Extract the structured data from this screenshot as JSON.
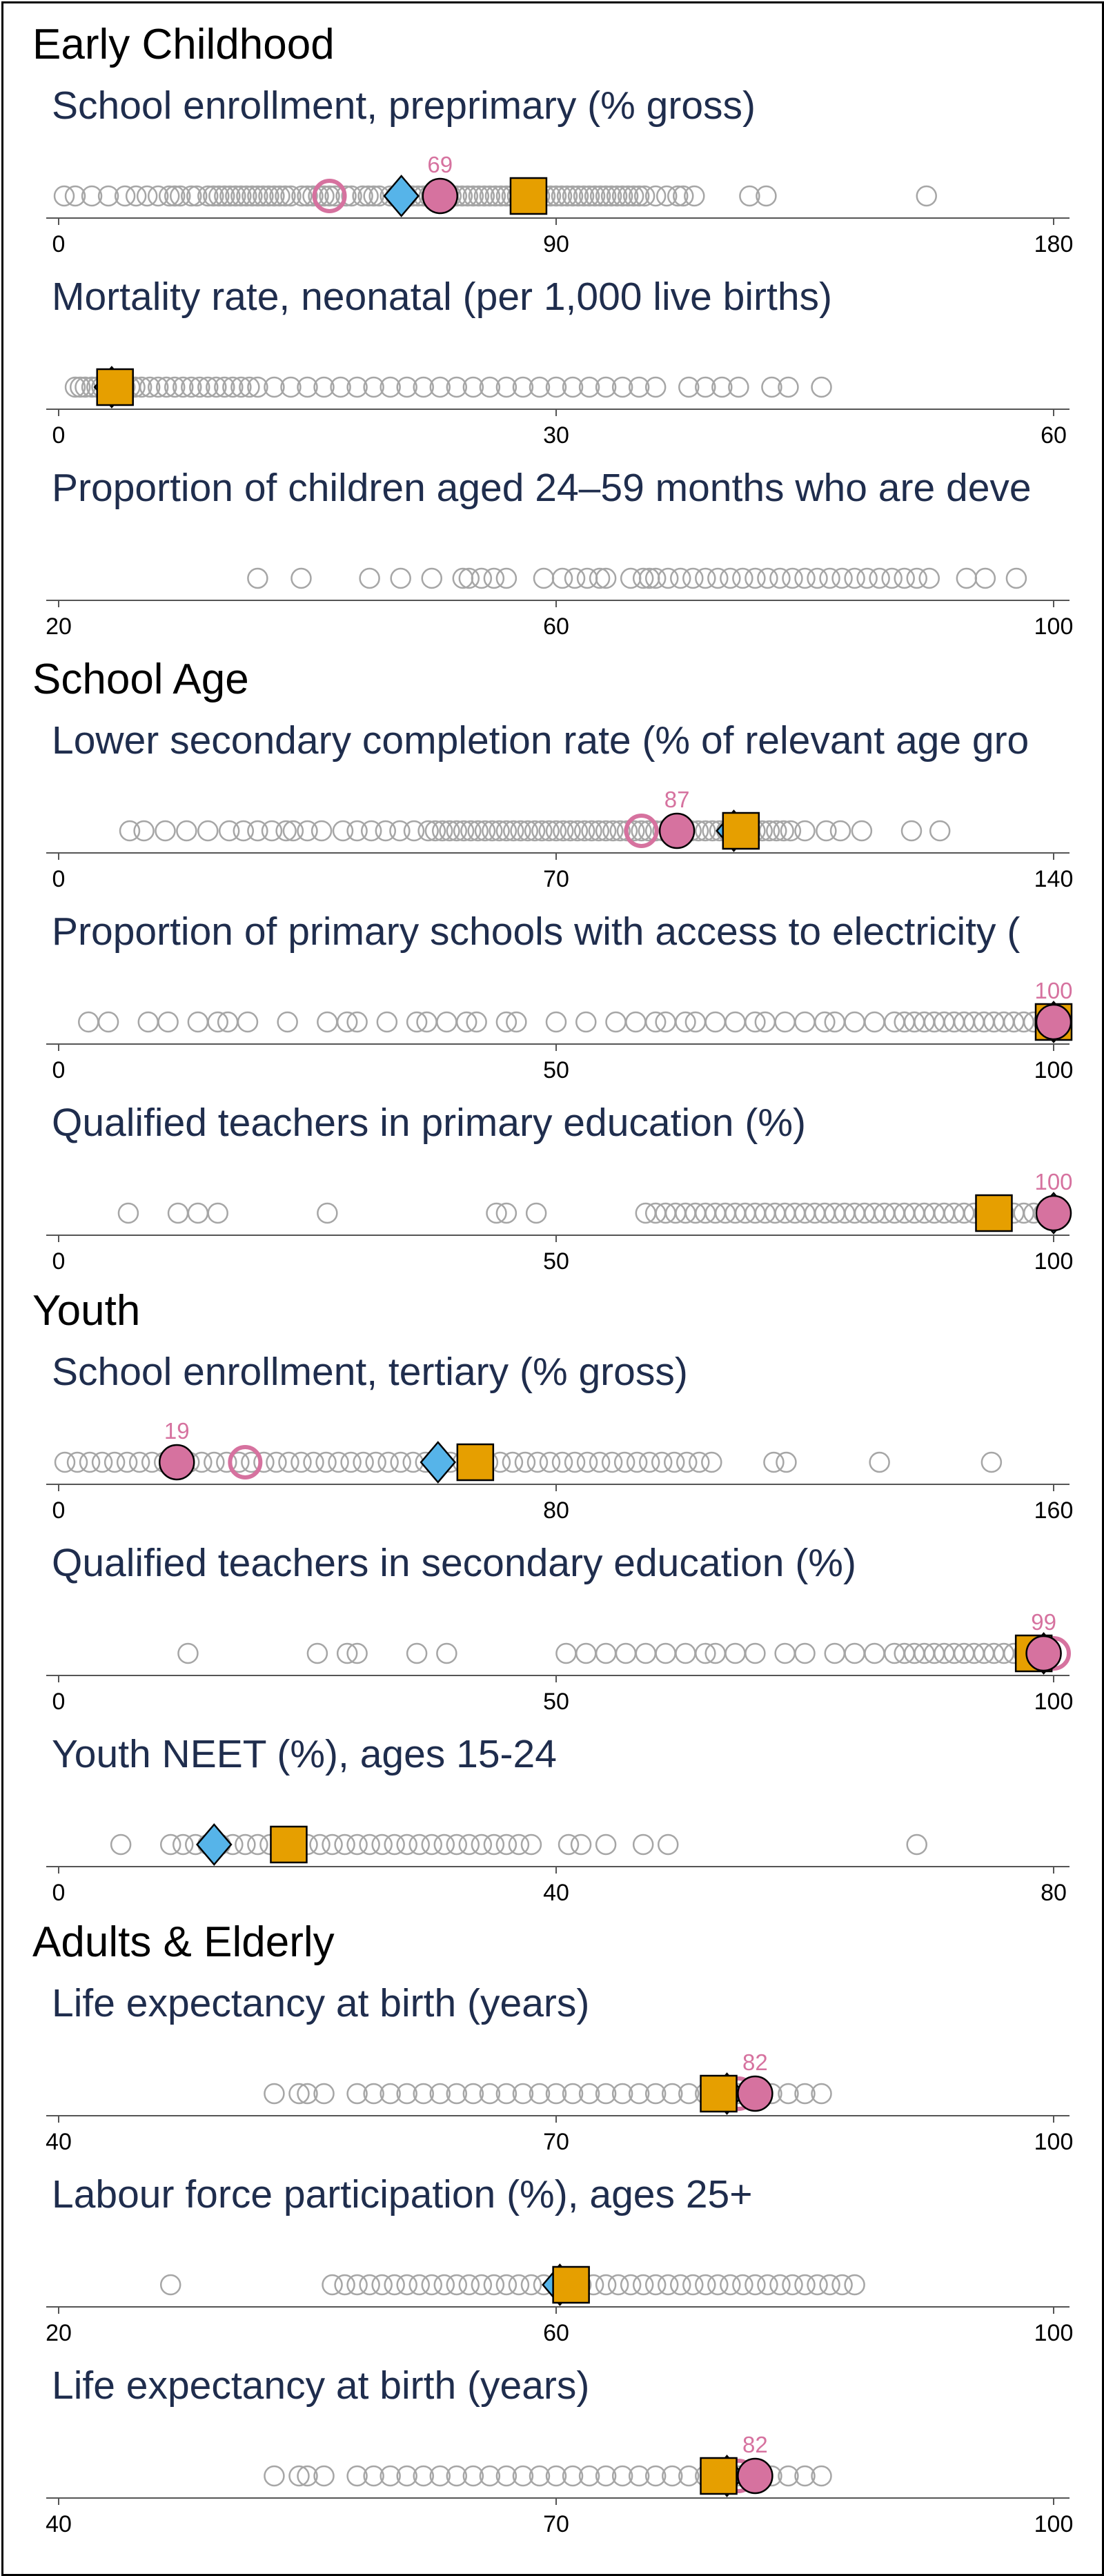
{
  "colors": {
    "background": "#ffffff",
    "border": "#000000",
    "dot_outline": "#a6a6a6",
    "title_text": "#1f2d4d",
    "section_text": "#000000",
    "country_fill": "#d6729f",
    "region_fill": "#56b4e9",
    "income_fill": "#e69f00",
    "marker_edge": "#000000"
  },
  "chart_data": [
    {
      "type": "scatter",
      "section": "Early Childhood",
      "title": "School enrollment, preprimary (% gross)",
      "xlim": [
        0,
        180
      ],
      "ticks": [
        0,
        90,
        180
      ],
      "dots": [
        1,
        3,
        6,
        9,
        12,
        14,
        16,
        18,
        20,
        21,
        22,
        24,
        25,
        27,
        28,
        29,
        30,
        31,
        32,
        33,
        34,
        35,
        36,
        37,
        38,
        39,
        40,
        41,
        42,
        44,
        45,
        46,
        47,
        48,
        49,
        50,
        52,
        53,
        55,
        56,
        57,
        58,
        60,
        61,
        62,
        63,
        64,
        65,
        66,
        67,
        68,
        69,
        70,
        71,
        72,
        73,
        74,
        75,
        76,
        77,
        78,
        79,
        80,
        81,
        82,
        83,
        84,
        85,
        86,
        87,
        88,
        89,
        90,
        91,
        92,
        93,
        94,
        95,
        96,
        97,
        98,
        99,
        100,
        101,
        102,
        103,
        104,
        105,
        106,
        108,
        110,
        112,
        113,
        115,
        125,
        128,
        157
      ],
      "country": 69,
      "country_label": "69",
      "country_prev": 49,
      "region": 62,
      "income": 85
    },
    {
      "type": "scatter",
      "section": "",
      "title": "Mortality rate, neonatal (per 1,000 live births)",
      "xlim": [
        0,
        60
      ],
      "ticks": [
        0,
        30,
        60
      ],
      "dots": [
        1,
        1.3,
        1.6,
        2,
        2.3,
        2.6,
        3,
        3.3,
        3.6,
        4,
        4.3,
        4.6,
        5,
        5.5,
        6,
        6.5,
        7,
        7.5,
        8,
        8.5,
        9,
        9.5,
        10,
        10.5,
        11,
        11.5,
        12,
        13,
        14,
        15,
        16,
        17,
        18,
        19,
        20,
        21,
        22,
        23,
        24,
        25,
        26,
        27,
        28,
        29,
        30,
        31,
        32,
        33,
        34,
        35,
        36,
        38,
        39,
        40,
        41,
        43,
        44,
        46
      ],
      "country": null,
      "country_label": "",
      "country_prev": null,
      "region": 3.2,
      "income": 3.4
    },
    {
      "type": "scatter",
      "section": "",
      "title": "Proportion of children aged 24–59 months who are deve",
      "xlim": [
        20,
        100
      ],
      "ticks": [
        20,
        60,
        100
      ],
      "dots": [
        36,
        39.5,
        45,
        47.5,
        50,
        52.5,
        53,
        54,
        55,
        56,
        59,
        60.5,
        61.5,
        62.5,
        63.5,
        64,
        66,
        67,
        67.5,
        68,
        69,
        70,
        71,
        72,
        73,
        74,
        75,
        76,
        77,
        78,
        79,
        80,
        81,
        82,
        83,
        84,
        85,
        86,
        87,
        88,
        89,
        90,
        93,
        94.5,
        97
      ],
      "country": null,
      "country_label": "",
      "country_prev": null,
      "region": null,
      "income": null
    },
    {
      "type": "scatter",
      "section": "School Age",
      "title": "Lower secondary completion rate (% of relevant age gro",
      "xlim": [
        0,
        140
      ],
      "ticks": [
        0,
        70,
        140
      ],
      "dots": [
        10,
        12,
        15,
        18,
        21,
        24,
        26,
        28,
        30,
        32,
        33,
        35,
        37,
        40,
        42,
        44,
        46,
        48,
        50,
        52,
        53,
        54,
        55,
        56,
        57,
        58,
        59,
        60,
        61,
        62,
        63,
        64,
        65,
        66,
        67,
        68,
        69,
        70,
        71,
        72,
        73,
        74,
        75,
        76,
        77,
        78,
        79,
        80,
        81,
        82,
        83,
        84,
        85,
        86,
        87,
        88,
        89,
        90,
        91,
        92,
        93,
        94,
        95,
        96,
        97,
        98,
        99,
        100,
        101,
        102,
        103,
        105,
        108,
        110,
        113,
        120,
        124
      ],
      "country": 87,
      "country_label": "87",
      "country_prev": 82,
      "region": 95,
      "income": 96
    },
    {
      "type": "scatter",
      "section": "",
      "title": "Proportion of primary schools with access to electricity (",
      "xlim": [
        0,
        100
      ],
      "ticks": [
        0,
        50,
        100
      ],
      "dots": [
        3,
        5,
        9,
        11,
        14,
        16,
        17,
        19,
        23,
        27,
        29,
        30,
        33,
        36,
        37,
        39,
        41,
        42,
        45,
        46,
        50,
        53,
        56,
        58,
        60,
        61,
        63,
        64,
        66,
        68,
        70,
        71,
        73,
        75,
        77,
        78,
        80,
        82,
        84,
        85,
        86,
        87,
        88,
        89,
        90,
        91,
        92,
        93,
        94,
        95,
        96,
        97,
        98,
        99,
        100
      ],
      "country": 100,
      "country_label": "100",
      "country_prev": null,
      "region": 100,
      "income": 100
    },
    {
      "type": "scatter",
      "section": "",
      "title": "Qualified teachers in primary education (%)",
      "xlim": [
        0,
        100
      ],
      "ticks": [
        0,
        50,
        100
      ],
      "dots": [
        7,
        12,
        14,
        16,
        27,
        44,
        45,
        48,
        59,
        60,
        61,
        62,
        63,
        64,
        65,
        66,
        67,
        68,
        69,
        70,
        71,
        72,
        73,
        74,
        75,
        76,
        77,
        78,
        79,
        80,
        81,
        82,
        83,
        84,
        85,
        86,
        87,
        88,
        89,
        90,
        91,
        92,
        93,
        94,
        95,
        96,
        97,
        98,
        99,
        100
      ],
      "country": 100,
      "country_label": "100",
      "country_prev": null,
      "region": 100,
      "income": 94
    },
    {
      "type": "scatter",
      "section": "Youth",
      "title": "School enrollment, tertiary (% gross)",
      "xlim": [
        0,
        160
      ],
      "ticks": [
        0,
        80,
        160
      ],
      "dots": [
        1,
        3,
        5,
        7,
        9,
        11,
        13,
        15,
        17,
        19,
        21,
        23,
        25,
        27,
        29,
        31,
        33,
        35,
        37,
        39,
        41,
        43,
        45,
        47,
        49,
        51,
        53,
        55,
        57,
        59,
        61,
        63,
        65,
        67,
        69,
        71,
        73,
        75,
        77,
        79,
        81,
        83,
        85,
        87,
        89,
        91,
        93,
        95,
        97,
        99,
        101,
        103,
        105,
        115,
        117,
        132,
        150
      ],
      "country": 19,
      "country_label": "19",
      "country_prev": 30,
      "region": 61,
      "income": 67
    },
    {
      "type": "scatter",
      "section": "",
      "title": "Qualified teachers in secondary education (%)",
      "xlim": [
        0,
        100
      ],
      "ticks": [
        0,
        50,
        100
      ],
      "dots": [
        13,
        26,
        29,
        30,
        36,
        39,
        51,
        53,
        55,
        57,
        59,
        61,
        63,
        65,
        66,
        68,
        70,
        73,
        75,
        78,
        80,
        82,
        84,
        85,
        86,
        87,
        88,
        89,
        90,
        91,
        92,
        93,
        94,
        95,
        96,
        97,
        98,
        99
      ],
      "country": 99,
      "country_label": "99",
      "country_prev": 100,
      "region": 99,
      "income": 98
    },
    {
      "type": "scatter",
      "section": "",
      "title": "Youth NEET (%), ages 15-24",
      "xlim": [
        0,
        80
      ],
      "ticks": [
        0,
        40,
        80
      ],
      "dots": [
        5,
        9,
        10,
        11,
        12,
        13,
        14,
        15,
        16,
        17,
        18,
        19,
        20,
        21,
        22,
        23,
        24,
        25,
        26,
        27,
        28,
        29,
        30,
        31,
        32,
        33,
        34,
        35,
        36,
        37,
        38,
        41,
        42,
        44,
        47,
        49,
        69
      ],
      "country": null,
      "country_label": "",
      "country_prev": null,
      "region": 12.5,
      "income": 18.5
    },
    {
      "type": "scatter",
      "section": "Adults & Elderly",
      "title": "Life expectancy at birth (years)",
      "xlim": [
        40,
        100
      ],
      "ticks": [
        40,
        70,
        100
      ],
      "dots": [
        53,
        54.5,
        55,
        56,
        58,
        59,
        60,
        61,
        62,
        63,
        64,
        65,
        66,
        67,
        68,
        69,
        70,
        71,
        72,
        73,
        74,
        75,
        76,
        77,
        78,
        79,
        80,
        81,
        82,
        83,
        84,
        85,
        86
      ],
      "country": 82,
      "country_label": "82",
      "country_prev": 81,
      "region": 80.3,
      "income": 79.8
    },
    {
      "type": "scatter",
      "section": "",
      "title": "Labour force participation (%), ages 25+",
      "xlim": [
        20,
        100
      ],
      "ticks": [
        20,
        60,
        100
      ],
      "dots": [
        29,
        42,
        43,
        44,
        45,
        46,
        47,
        48,
        49,
        50,
        51,
        52,
        53,
        54,
        55,
        56,
        57,
        58,
        59,
        60,
        61,
        62,
        63,
        64,
        65,
        66,
        67,
        68,
        69,
        70,
        71,
        72,
        73,
        74,
        75,
        76,
        77,
        78,
        79,
        80,
        81,
        82,
        83,
        84
      ],
      "country": null,
      "country_label": "",
      "country_prev": null,
      "region": 60.3,
      "income": 61.2
    },
    {
      "type": "scatter",
      "section": "",
      "title": "Life expectancy at birth (years)",
      "xlim": [
        40,
        100
      ],
      "ticks": [
        40,
        70,
        100
      ],
      "dots": [
        53,
        54.5,
        55,
        56,
        58,
        59,
        60,
        61,
        62,
        63,
        64,
        65,
        66,
        67,
        68,
        69,
        70,
        71,
        72,
        73,
        74,
        75,
        76,
        77,
        78,
        79,
        80,
        81,
        82,
        83,
        84,
        85,
        86
      ],
      "country": 82,
      "country_label": "82",
      "country_prev": 81,
      "region": 80.3,
      "income": 79.8
    }
  ]
}
